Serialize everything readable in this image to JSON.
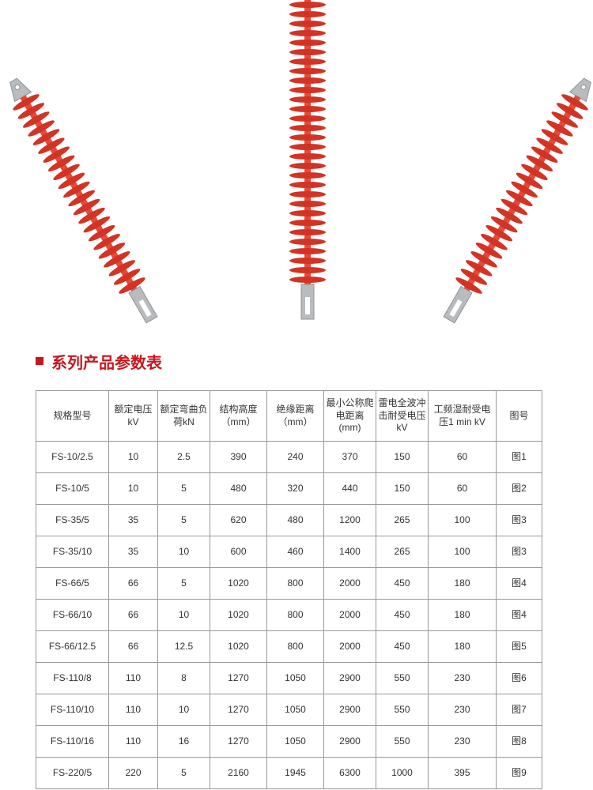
{
  "section_title": "系列产品参数表",
  "insulator_svg": {
    "shed_color": "#d23324",
    "rod_color": "#e24a3a",
    "fitting_color": "#b9bcbe",
    "fitting_dark": "#8f9394"
  },
  "table": {
    "columns": [
      "规格型号",
      "额定电压kV",
      "额定弯曲负荷kN",
      "结构高度（mm）",
      "绝缘距离（mm）",
      "最小公称爬电距离(mm)",
      "雷电全波冲击耐受电压kV",
      "工频湿耐受电压1 min kV",
      "图号"
    ],
    "rows": [
      [
        "FS-10/2.5",
        "10",
        "2.5",
        "390",
        "240",
        "370",
        "150",
        "60",
        "图1"
      ],
      [
        "FS-10/5",
        "10",
        "5",
        "480",
        "320",
        "440",
        "150",
        "60",
        "图2"
      ],
      [
        "FS-35/5",
        "35",
        "5",
        "620",
        "480",
        "1200",
        "265",
        "100",
        "图3"
      ],
      [
        "FS-35/10",
        "35",
        "10",
        "600",
        "460",
        "1400",
        "265",
        "100",
        "图3"
      ],
      [
        "FS-66/5",
        "66",
        "5",
        "1020",
        "800",
        "2000",
        "450",
        "180",
        "图4"
      ],
      [
        "FS-66/10",
        "66",
        "10",
        "1020",
        "800",
        "2000",
        "450",
        "180",
        "图4"
      ],
      [
        "FS-66/12.5",
        "66",
        "12.5",
        "1020",
        "800",
        "2000",
        "450",
        "180",
        "图5"
      ],
      [
        "FS-110/8",
        "110",
        "8",
        "1270",
        "1050",
        "2900",
        "550",
        "230",
        "图6"
      ],
      [
        "FS-110/10",
        "110",
        "10",
        "1270",
        "1050",
        "2900",
        "550",
        "230",
        "图7"
      ],
      [
        "FS-110/16",
        "110",
        "16",
        "1270",
        "1050",
        "2900",
        "550",
        "230",
        "图8"
      ],
      [
        "FS-220/5",
        "220",
        "5",
        "2160",
        "1945",
        "6300",
        "1000",
        "395",
        "图9"
      ]
    ]
  }
}
